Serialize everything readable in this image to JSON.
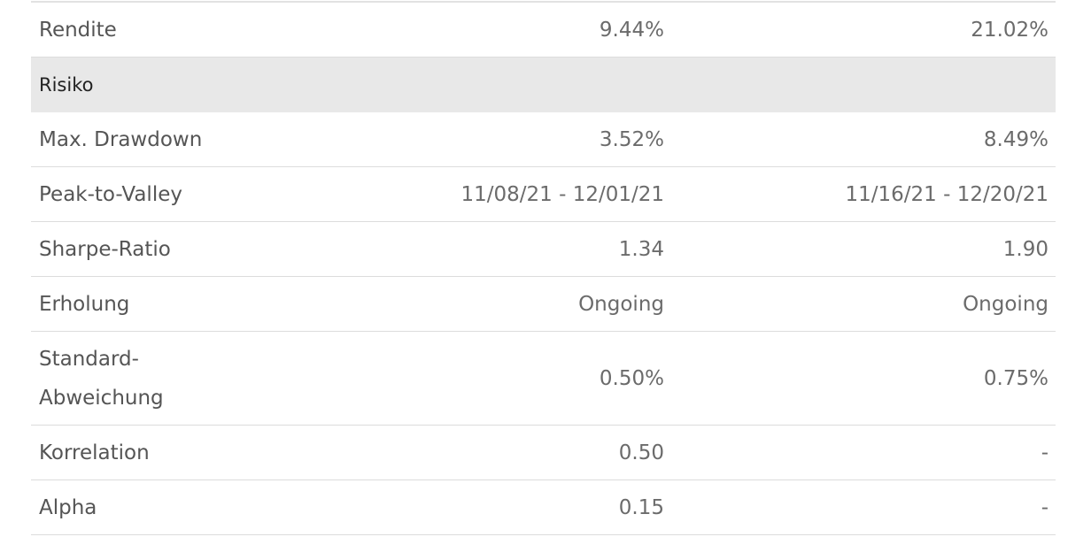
{
  "table": {
    "rows": [
      [
        "Rendite",
        "9.44%",
        "21.02%"
      ],
      [
        "Risiko"
      ],
      [
        "Max. Drawdown",
        "3.52%",
        "8.49%"
      ],
      [
        "Peak-to-Valley",
        "11/08/21 - 12/01/21",
        "11/16/21 - 12/20/21"
      ],
      [
        "Sharpe-Ratio",
        "1.34",
        "1.90"
      ],
      [
        "Erholung",
        "Ongoing",
        "Ongoing"
      ],
      [
        "Standard-Abweichung",
        "0.50%",
        "0.75%"
      ],
      [
        "Korrelation",
        "0.50",
        "-"
      ],
      [
        "Alpha",
        "0.15",
        "-"
      ]
    ]
  }
}
